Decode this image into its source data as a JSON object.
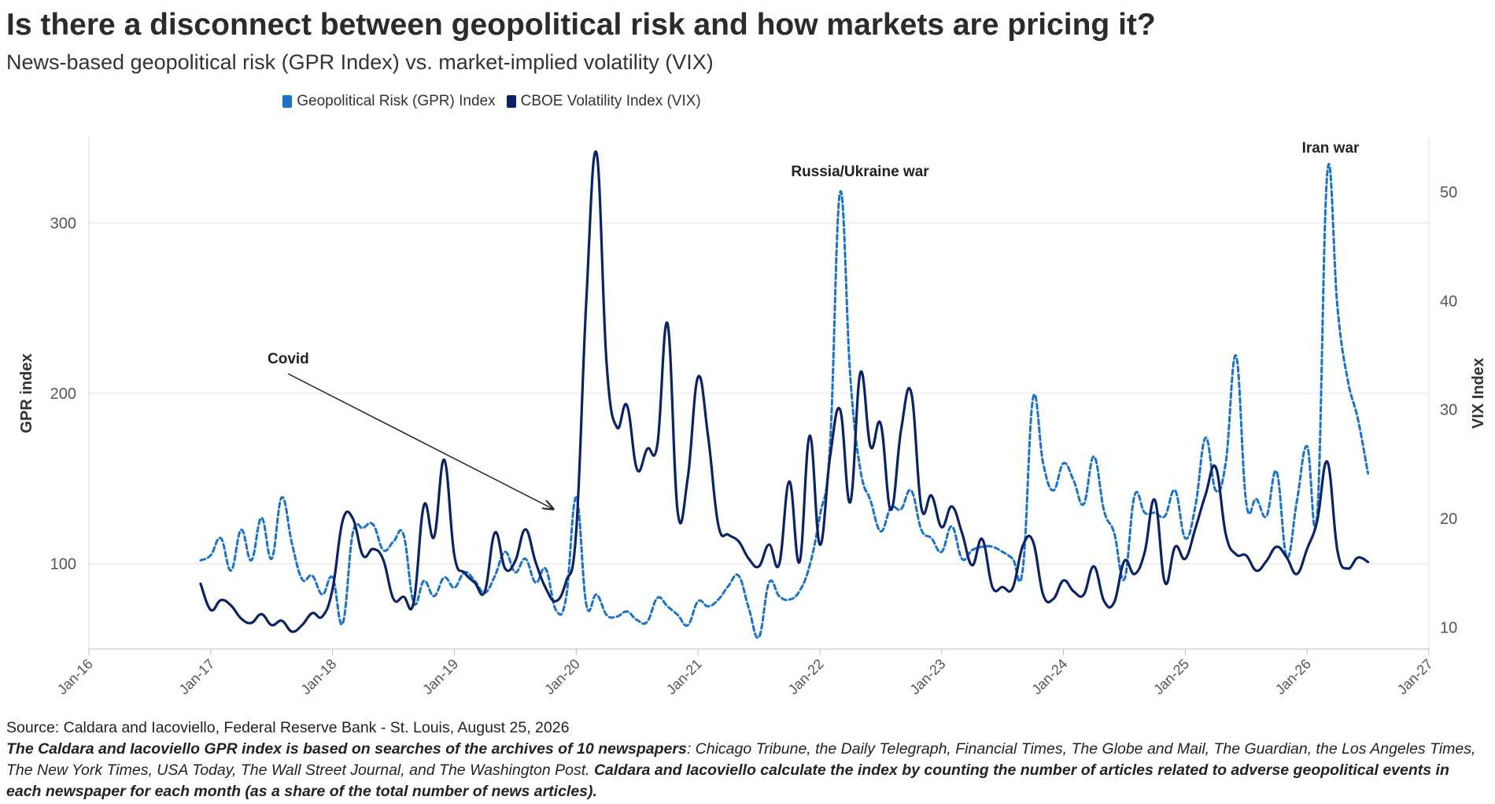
{
  "title": "Is there a disconnect between geopolitical risk and how markets are pricing it?",
  "subtitle": "News-based geopolitical risk (GPR Index) vs. market-implied volatility (VIX)",
  "legend": [
    {
      "label": "Geopolitical Risk (GPR) Index",
      "color": "#1a73c8"
    },
    {
      "label": "CBOE Volatility Index (VIX)",
      "color": "#0b2265"
    }
  ],
  "footer": {
    "source": "Source: Caldara and Iacoviello, Federal Reserve Bank - St. Louis, August 25, 2026",
    "note_bold_1": "The Caldara and Iacoviello GPR index is based on searches of the archives of 10 newspapers",
    "note_italic": ": Chicago Tribune, the Daily Telegraph, Financial Times, The Globe and Mail, The Guardian, the Los Angeles Times, The New York Times, USA Today, The Wall Street Journal, and The Washington Post. ",
    "note_bold_2": "Caldara and Iacoviello calculate the index by counting the number of articles related to adverse geopolitical events in each newspaper for each month (as a share of the total number of news articles)."
  },
  "chart_data": {
    "type": "line",
    "grid": "horizontal",
    "legend_position": "top-center",
    "x_ticks": [
      "Jan-16",
      "Jan-17",
      "Jan-18",
      "Jan-19",
      "Jan-20",
      "Jan-21",
      "Jan-22",
      "Jan-23",
      "Jan-24",
      "Jan-25",
      "Jan-26",
      "Jan-27"
    ],
    "x_range": [
      "2016-01",
      "2027-01"
    ],
    "y_left": {
      "label": "GPR index",
      "ticks": [
        100,
        200,
        300
      ],
      "range": [
        50,
        350
      ]
    },
    "y_right": {
      "label": "VIX Index",
      "ticks": [
        10,
        20,
        30,
        40,
        50
      ],
      "range": [
        8,
        55
      ]
    },
    "annotations": [
      {
        "text": "Covid"
      },
      {
        "text": "Russia/Ukraine war"
      },
      {
        "text": "Iran war"
      }
    ],
    "series": [
      {
        "name": "Geopolitical Risk (GPR) Index",
        "axis": "left",
        "style": "dashed",
        "color": "#1a73c8",
        "points": [
          [
            "2016-12",
            102
          ],
          [
            "2017-01",
            105
          ],
          [
            "2017-02",
            115
          ],
          [
            "2017-03",
            96
          ],
          [
            "2017-04",
            120
          ],
          [
            "2017-05",
            102
          ],
          [
            "2017-06",
            127
          ],
          [
            "2017-07",
            103
          ],
          [
            "2017-08",
            139
          ],
          [
            "2017-09",
            112
          ],
          [
            "2017-10",
            91
          ],
          [
            "2017-11",
            93
          ],
          [
            "2017-12",
            82
          ],
          [
            "2018-01",
            92
          ],
          [
            "2018-02",
            65
          ],
          [
            "2018-03",
            118
          ],
          [
            "2018-04",
            121
          ],
          [
            "2018-05",
            123
          ],
          [
            "2018-06",
            108
          ],
          [
            "2018-07",
            113
          ],
          [
            "2018-08",
            117
          ],
          [
            "2018-09",
            77
          ],
          [
            "2018-10",
            90
          ],
          [
            "2018-11",
            81
          ],
          [
            "2018-12",
            92
          ],
          [
            "2019-01",
            86
          ],
          [
            "2019-02",
            95
          ],
          [
            "2019-03",
            90
          ],
          [
            "2019-04",
            83
          ],
          [
            "2019-05",
            93
          ],
          [
            "2019-06",
            107
          ],
          [
            "2019-07",
            95
          ],
          [
            "2019-08",
            103
          ],
          [
            "2019-09",
            89
          ],
          [
            "2019-10",
            97
          ],
          [
            "2019-11",
            73
          ],
          [
            "2019-12",
            80
          ],
          [
            "2020-01",
            139
          ],
          [
            "2020-02",
            76
          ],
          [
            "2020-03",
            82
          ],
          [
            "2020-04",
            70
          ],
          [
            "2020-05",
            69
          ],
          [
            "2020-06",
            72
          ],
          [
            "2020-07",
            67
          ],
          [
            "2020-08",
            66
          ],
          [
            "2020-09",
            80
          ],
          [
            "2020-10",
            75
          ],
          [
            "2020-11",
            70
          ],
          [
            "2020-12",
            64
          ],
          [
            "2021-01",
            78
          ],
          [
            "2021-02",
            75
          ],
          [
            "2021-03",
            79
          ],
          [
            "2021-04",
            87
          ],
          [
            "2021-05",
            93
          ],
          [
            "2021-06",
            74
          ],
          [
            "2021-07",
            57
          ],
          [
            "2021-08",
            89
          ],
          [
            "2021-09",
            81
          ],
          [
            "2021-10",
            79
          ],
          [
            "2021-11",
            84
          ],
          [
            "2021-12",
            99
          ],
          [
            "2022-01",
            128
          ],
          [
            "2022-02",
            169
          ],
          [
            "2022-03",
            318
          ],
          [
            "2022-04",
            210
          ],
          [
            "2022-05",
            155
          ],
          [
            "2022-06",
            137
          ],
          [
            "2022-07",
            119
          ],
          [
            "2022-08",
            133
          ],
          [
            "2022-09",
            132
          ],
          [
            "2022-10",
            143
          ],
          [
            "2022-11",
            120
          ],
          [
            "2022-12",
            115
          ],
          [
            "2023-01",
            107
          ],
          [
            "2023-02",
            122
          ],
          [
            "2023-03",
            103
          ],
          [
            "2023-04",
            108
          ],
          [
            "2023-05",
            110
          ],
          [
            "2023-06",
            110
          ],
          [
            "2023-07",
            107
          ],
          [
            "2023-08",
            103
          ],
          [
            "2023-09",
            97
          ],
          [
            "2023-10",
            197
          ],
          [
            "2023-11",
            159
          ],
          [
            "2023-12",
            143
          ],
          [
            "2024-01",
            159
          ],
          [
            "2024-02",
            149
          ],
          [
            "2024-03",
            135
          ],
          [
            "2024-04",
            163
          ],
          [
            "2024-05",
            131
          ],
          [
            "2024-06",
            118
          ],
          [
            "2024-07",
            91
          ],
          [
            "2024-08",
            140
          ],
          [
            "2024-09",
            130
          ],
          [
            "2024-10",
            130
          ],
          [
            "2024-11",
            128
          ],
          [
            "2024-12",
            143
          ],
          [
            "2025-01",
            115
          ],
          [
            "2025-02",
            134
          ],
          [
            "2025-03",
            174
          ],
          [
            "2025-04",
            143
          ],
          [
            "2025-05",
            160
          ],
          [
            "2025-06",
            222
          ],
          [
            "2025-07",
            136
          ],
          [
            "2025-08",
            138
          ],
          [
            "2025-09",
            128
          ],
          [
            "2025-10",
            154
          ],
          [
            "2025-11",
            104
          ],
          [
            "2025-12",
            137
          ],
          [
            "2026-01",
            169
          ],
          [
            "2026-02",
            129
          ],
          [
            "2026-03",
            330
          ],
          [
            "2026-04",
            250
          ],
          [
            "2026-05",
            208
          ],
          [
            "2026-06",
            185
          ],
          [
            "2026-07",
            153
          ]
        ]
      },
      {
        "name": "CBOE Volatility Index (VIX)",
        "axis": "right",
        "style": "solid",
        "color": "#0b2265",
        "points": [
          [
            "2016-12",
            14
          ],
          [
            "2017-01",
            11.6
          ],
          [
            "2017-02",
            12.5
          ],
          [
            "2017-03",
            12.0
          ],
          [
            "2017-04",
            10.8
          ],
          [
            "2017-05",
            10.4
          ],
          [
            "2017-06",
            11.2
          ],
          [
            "2017-07",
            10.2
          ],
          [
            "2017-08",
            10.6
          ],
          [
            "2017-09",
            9.6
          ],
          [
            "2017-10",
            10.2
          ],
          [
            "2017-11",
            11.3
          ],
          [
            "2017-12",
            11.0
          ],
          [
            "2018-01",
            13.5
          ],
          [
            "2018-02",
            19.8
          ],
          [
            "2018-03",
            20.0
          ],
          [
            "2018-04",
            16.6
          ],
          [
            "2018-05",
            17.2
          ],
          [
            "2018-06",
            16.2
          ],
          [
            "2018-07",
            12.6
          ],
          [
            "2018-08",
            12.8
          ],
          [
            "2018-09",
            12.3
          ],
          [
            "2018-10",
            21.2
          ],
          [
            "2018-11",
            18.3
          ],
          [
            "2018-12",
            25.4
          ],
          [
            "2019-01",
            16.6
          ],
          [
            "2019-02",
            15.0
          ],
          [
            "2019-03",
            14.1
          ],
          [
            "2019-04",
            13.3
          ],
          [
            "2019-05",
            18.7
          ],
          [
            "2019-06",
            15.4
          ],
          [
            "2019-07",
            16.1
          ],
          [
            "2019-08",
            19.0
          ],
          [
            "2019-09",
            16.0
          ],
          [
            "2019-10",
            13.6
          ],
          [
            "2019-11",
            12.4
          ],
          [
            "2019-12",
            14.2
          ],
          [
            "2020-01",
            18.8
          ],
          [
            "2020-02",
            40.1
          ],
          [
            "2020-03",
            53.6
          ],
          [
            "2020-04",
            34.2
          ],
          [
            "2020-05",
            28.4
          ],
          [
            "2020-06",
            30.4
          ],
          [
            "2020-07",
            24.5
          ],
          [
            "2020-08",
            26.4
          ],
          [
            "2020-09",
            26.8
          ],
          [
            "2020-10",
            37.9
          ],
          [
            "2020-11",
            20.6
          ],
          [
            "2020-12",
            23.8
          ],
          [
            "2021-01",
            33.0
          ],
          [
            "2021-02",
            27.5
          ],
          [
            "2021-03",
            19.4
          ],
          [
            "2021-04",
            18.5
          ],
          [
            "2021-05",
            17.9
          ],
          [
            "2021-06",
            16.3
          ],
          [
            "2021-07",
            15.6
          ],
          [
            "2021-08",
            17.6
          ],
          [
            "2021-09",
            15.8
          ],
          [
            "2021-10",
            23.4
          ],
          [
            "2021-11",
            16.0
          ],
          [
            "2021-12",
            27.6
          ],
          [
            "2022-01",
            17.6
          ],
          [
            "2022-02",
            25.6
          ],
          [
            "2022-03",
            30.0
          ],
          [
            "2022-04",
            21.5
          ],
          [
            "2022-05",
            33.4
          ],
          [
            "2022-06",
            26.6
          ],
          [
            "2022-07",
            28.7
          ],
          [
            "2022-08",
            20.8
          ],
          [
            "2022-09",
            28.1
          ],
          [
            "2022-10",
            31.6
          ],
          [
            "2022-11",
            21.0
          ],
          [
            "2022-12",
            22.1
          ],
          [
            "2023-01",
            19.2
          ],
          [
            "2023-02",
            21.1
          ],
          [
            "2023-03",
            18.7
          ],
          [
            "2023-04",
            15.7
          ],
          [
            "2023-05",
            18.1
          ],
          [
            "2023-06",
            13.7
          ],
          [
            "2023-07",
            13.7
          ],
          [
            "2023-08",
            13.6
          ],
          [
            "2023-09",
            17.5
          ],
          [
            "2023-10",
            17.9
          ],
          [
            "2023-11",
            13.0
          ],
          [
            "2023-12",
            12.6
          ],
          [
            "2024-01",
            14.3
          ],
          [
            "2024-02",
            13.3
          ],
          [
            "2024-03",
            13.0
          ],
          [
            "2024-04",
            15.6
          ],
          [
            "2024-05",
            12.4
          ],
          [
            "2024-06",
            12.3
          ],
          [
            "2024-07",
            16.1
          ],
          [
            "2024-08",
            14.9
          ],
          [
            "2024-09",
            16.9
          ],
          [
            "2024-10",
            21.7
          ],
          [
            "2024-11",
            14.1
          ],
          [
            "2024-12",
            17.4
          ],
          [
            "2025-01",
            16.3
          ],
          [
            "2025-02",
            19.1
          ],
          [
            "2025-03",
            22.2
          ],
          [
            "2025-04",
            24.7
          ],
          [
            "2025-05",
            18.5
          ],
          [
            "2025-06",
            16.7
          ],
          [
            "2025-07",
            16.6
          ],
          [
            "2025-08",
            15.2
          ],
          [
            "2025-09",
            16.1
          ],
          [
            "2025-10",
            17.4
          ],
          [
            "2025-11",
            16.4
          ],
          [
            "2025-12",
            14.9
          ],
          [
            "2026-01",
            17.2
          ],
          [
            "2026-02",
            19.8
          ],
          [
            "2026-03",
            25.2
          ],
          [
            "2026-04",
            17.0
          ],
          [
            "2026-05",
            15.4
          ],
          [
            "2026-06",
            16.4
          ],
          [
            "2026-07",
            16.0
          ]
        ]
      }
    ]
  }
}
